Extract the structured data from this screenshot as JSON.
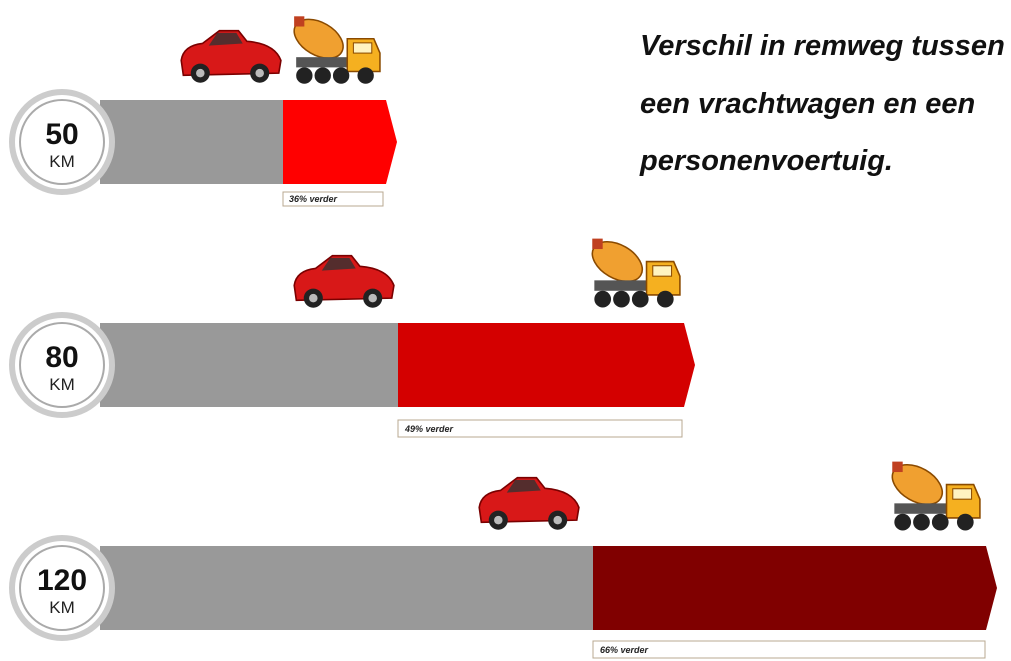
{
  "title": {
    "lines": [
      "Verschil in remweg tussen",
      "een vrachtwagen en een",
      "personenvoertuig."
    ]
  },
  "rows": [
    {
      "speed": "50",
      "unit": "KM",
      "difference": "36% verder"
    },
    {
      "speed": "80",
      "unit": "KM",
      "difference": "49% verder"
    },
    {
      "speed": "120",
      "unit": "KM",
      "difference": "66% verder"
    }
  ]
}
